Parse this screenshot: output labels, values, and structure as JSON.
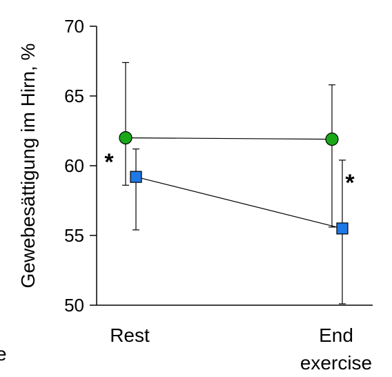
{
  "chart_data": {
    "type": "line",
    "title": "",
    "ylabel": "Gewebesättigung im Hirn, %",
    "xlabel": "",
    "ylim": [
      50,
      70
    ],
    "yticks": [
      "50",
      "55",
      "60",
      "65",
      "70"
    ],
    "categories": [
      [
        "Rest"
      ],
      [
        "End",
        "exercise"
      ]
    ],
    "grid": false,
    "legend": "none",
    "series": [
      {
        "marker": "circle",
        "color": "#1aa81a",
        "values": [
          62.0,
          61.9
        ],
        "error_upper": [
          67.4,
          65.8
        ],
        "error_lower": [
          58.6,
          55.6
        ]
      },
      {
        "marker": "square",
        "color": "#1e78e6",
        "values": [
          59.2,
          55.5
        ],
        "error_upper": [
          61.2,
          60.4
        ],
        "error_lower": [
          55.4,
          50.1
        ]
      }
    ],
    "annotations": [
      {
        "text": "*",
        "category_index": 0
      },
      {
        "text": "*",
        "category_index": 1
      }
    ],
    "fragment_text": "e"
  }
}
